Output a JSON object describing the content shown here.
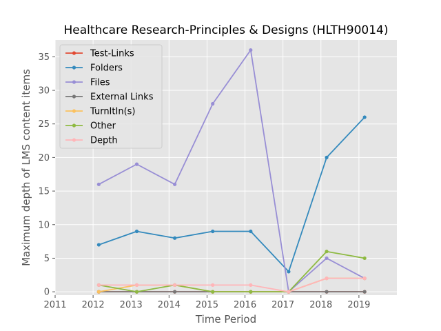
{
  "chart_data": {
    "type": "line",
    "title": "Healthcare Research-Principles & Designs (HLTH90014)",
    "xlabel": "Time Period",
    "ylabel": "Maximum depth of LMS content items",
    "xlim": [
      2011,
      2020
    ],
    "ylim": [
      -0.5,
      37.5
    ],
    "xticks": [
      "2011",
      "2012",
      "2013",
      "2014",
      "2015",
      "2016",
      "2017",
      "2018",
      "2019"
    ],
    "yticks": [
      "0",
      "5",
      "10",
      "15",
      "20",
      "25",
      "30",
      "35"
    ],
    "x": [
      2012.15,
      2013.15,
      2014.15,
      2015.15,
      2016.15,
      2017.15,
      2018.15,
      2019.15
    ],
    "grid": true,
    "legend_position": "top-left",
    "series": [
      {
        "name": "Test-Links",
        "color": "#e24a33",
        "values": [
          0,
          0,
          0,
          0,
          0,
          0,
          0,
          0
        ]
      },
      {
        "name": "Folders",
        "color": "#348abd",
        "values": [
          7,
          9,
          8,
          9,
          9,
          3,
          20,
          26
        ]
      },
      {
        "name": "Files",
        "color": "#988ed5",
        "values": [
          16,
          19,
          16,
          28,
          36,
          0,
          5,
          2
        ]
      },
      {
        "name": "External Links",
        "color": "#777777",
        "values": [
          0,
          0,
          0,
          0,
          0,
          0,
          0,
          0
        ]
      },
      {
        "name": "TurnItIn(s)",
        "color": "#fbc15e",
        "values": [
          0,
          1,
          1,
          0,
          0,
          0,
          2,
          2
        ]
      },
      {
        "name": "Other",
        "color": "#8eba42",
        "values": [
          1,
          0,
          1,
          0,
          0,
          0,
          6,
          5
        ]
      },
      {
        "name": "Depth",
        "color": "#ffb5b8",
        "values": [
          1,
          1,
          1,
          1,
          1,
          0,
          2,
          2
        ]
      }
    ]
  }
}
